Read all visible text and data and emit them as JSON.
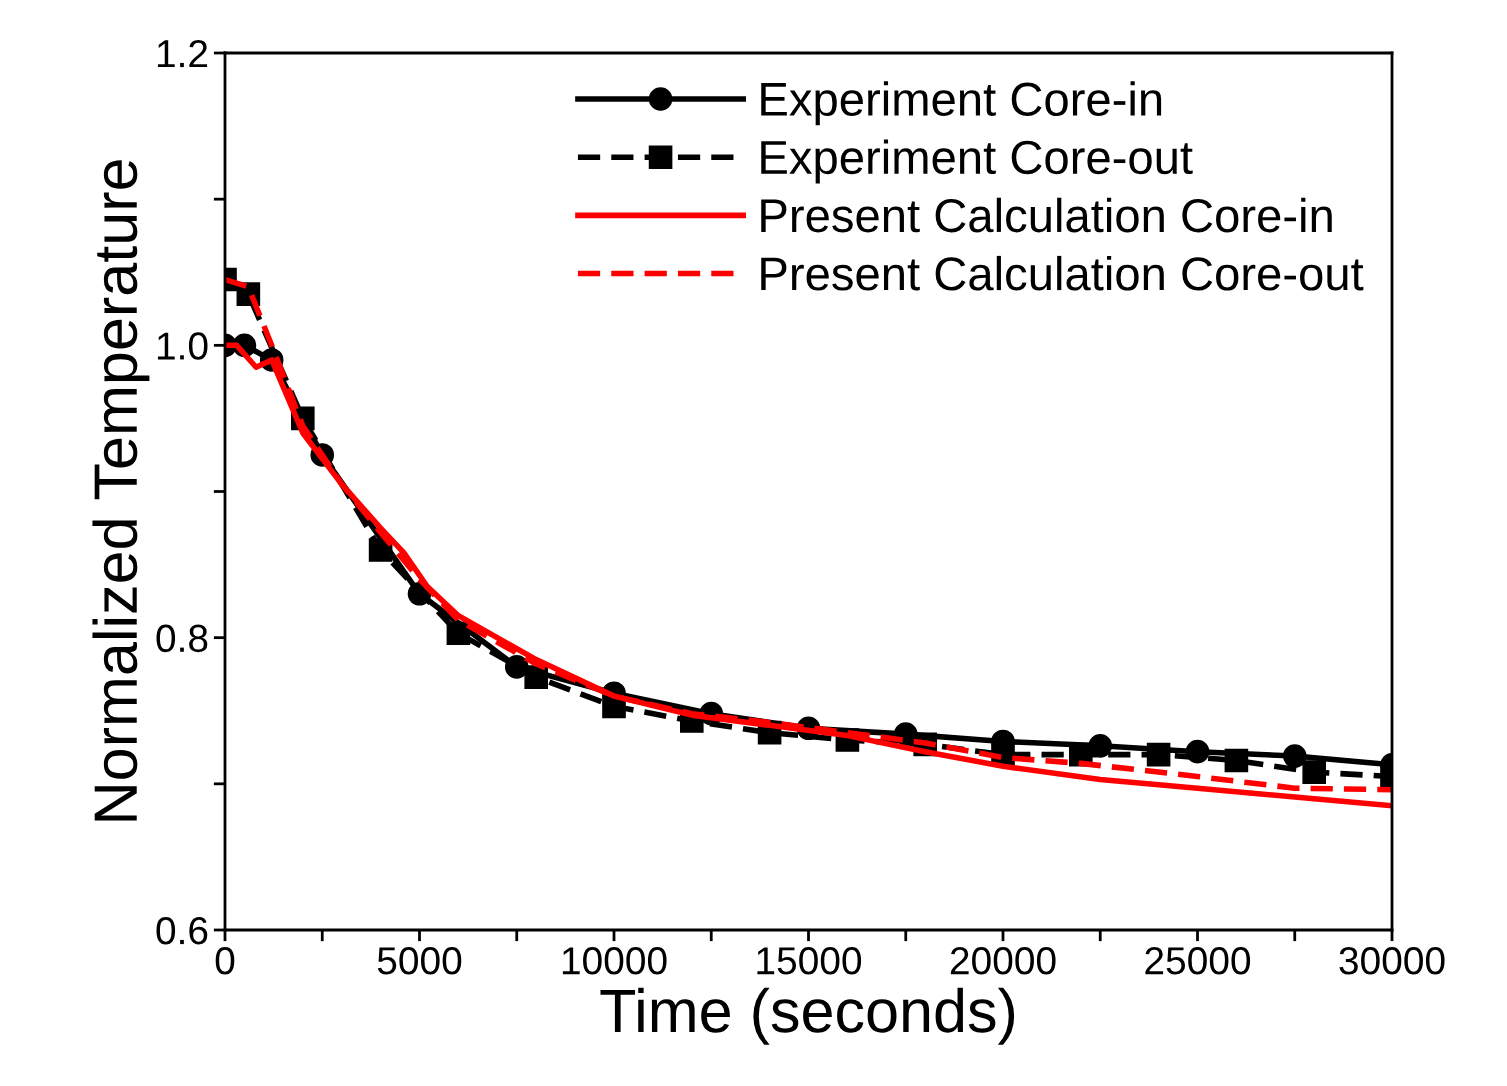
{
  "chart_data": {
    "type": "line",
    "xlabel": "Time (seconds)",
    "ylabel": "Normalized Temperature",
    "xlim": [
      0,
      30000
    ],
    "ylim": [
      0.6,
      1.2
    ],
    "xticks": [
      0,
      {
        "value": 2500,
        "label": null
      },
      5000,
      {
        "value": 7500,
        "label": null
      },
      10000,
      {
        "value": 12500,
        "label": null
      },
      15000,
      {
        "value": 17500,
        "label": null
      },
      20000,
      {
        "value": 22500,
        "label": null
      },
      25000,
      {
        "value": 27500,
        "label": null
      },
      30000
    ],
    "yticks": [
      0.6,
      {
        "value": 0.7,
        "label": null
      },
      0.8,
      {
        "value": 0.9,
        "label": null
      },
      {
        "value": 1.0,
        "label": "1.0"
      },
      {
        "value": 1.1,
        "label": null
      },
      1.2
    ],
    "grid": false,
    "legend": "top right",
    "series": [
      {
        "name": "Experiment Core-in",
        "color": "#000000",
        "marker": "circle",
        "line_style": "solid",
        "x": [
          0,
          500,
          1200,
          2500,
          5000,
          7500,
          10000,
          12500,
          15000,
          17500,
          20000,
          22500,
          25000,
          27500,
          30000
        ],
        "values": [
          1.0,
          1.0,
          0.99,
          0.925,
          0.83,
          0.78,
          0.762,
          0.748,
          0.738,
          0.734,
          0.729,
          0.726,
          0.722,
          0.719,
          0.713
        ]
      },
      {
        "name": "Experiment Core-out",
        "color": "#000000",
        "marker": "square",
        "line_style": "dashed",
        "x": [
          0,
          600,
          2000,
          4000,
          6000,
          8000,
          10000,
          12000,
          14000,
          16000,
          18000,
          20000,
          22000,
          24000,
          26000,
          28000,
          30000
        ],
        "values": [
          1.045,
          1.035,
          0.95,
          0.86,
          0.803,
          0.773,
          0.753,
          0.743,
          0.735,
          0.73,
          0.727,
          0.72,
          0.72,
          0.72,
          0.716,
          0.708,
          0.705
        ]
      },
      {
        "name": "Present Calculation Core-in",
        "color": "#ff0000",
        "marker": "none",
        "line_style": "solid",
        "x": [
          0,
          300,
          800,
          1200,
          2000,
          3000,
          4000,
          4600,
          5200,
          6000,
          8000,
          10000,
          12000,
          14000,
          16000,
          18000,
          20000,
          22500,
          25000,
          27500,
          30000
        ],
        "values": [
          1.0,
          1.0,
          0.985,
          0.99,
          0.94,
          0.905,
          0.875,
          0.858,
          0.835,
          0.815,
          0.785,
          0.76,
          0.747,
          0.74,
          0.733,
          0.722,
          0.712,
          0.703,
          0.697,
          0.691,
          0.685
        ]
      },
      {
        "name": "Present Calculation Core-out",
        "color": "#ff0000",
        "marker": "none",
        "line_style": "dashed",
        "x": [
          0,
          600,
          1200,
          2000,
          3000,
          4000,
          5000,
          6000,
          8000,
          10000,
          12000,
          14000,
          16000,
          18000,
          20000,
          22000,
          25000,
          27500,
          30000
        ],
        "values": [
          1.045,
          1.04,
          1.0,
          0.945,
          0.905,
          0.872,
          0.84,
          0.812,
          0.782,
          0.76,
          0.748,
          0.742,
          0.735,
          0.728,
          0.718,
          0.714,
          0.705,
          0.697,
          0.696
        ]
      }
    ]
  }
}
